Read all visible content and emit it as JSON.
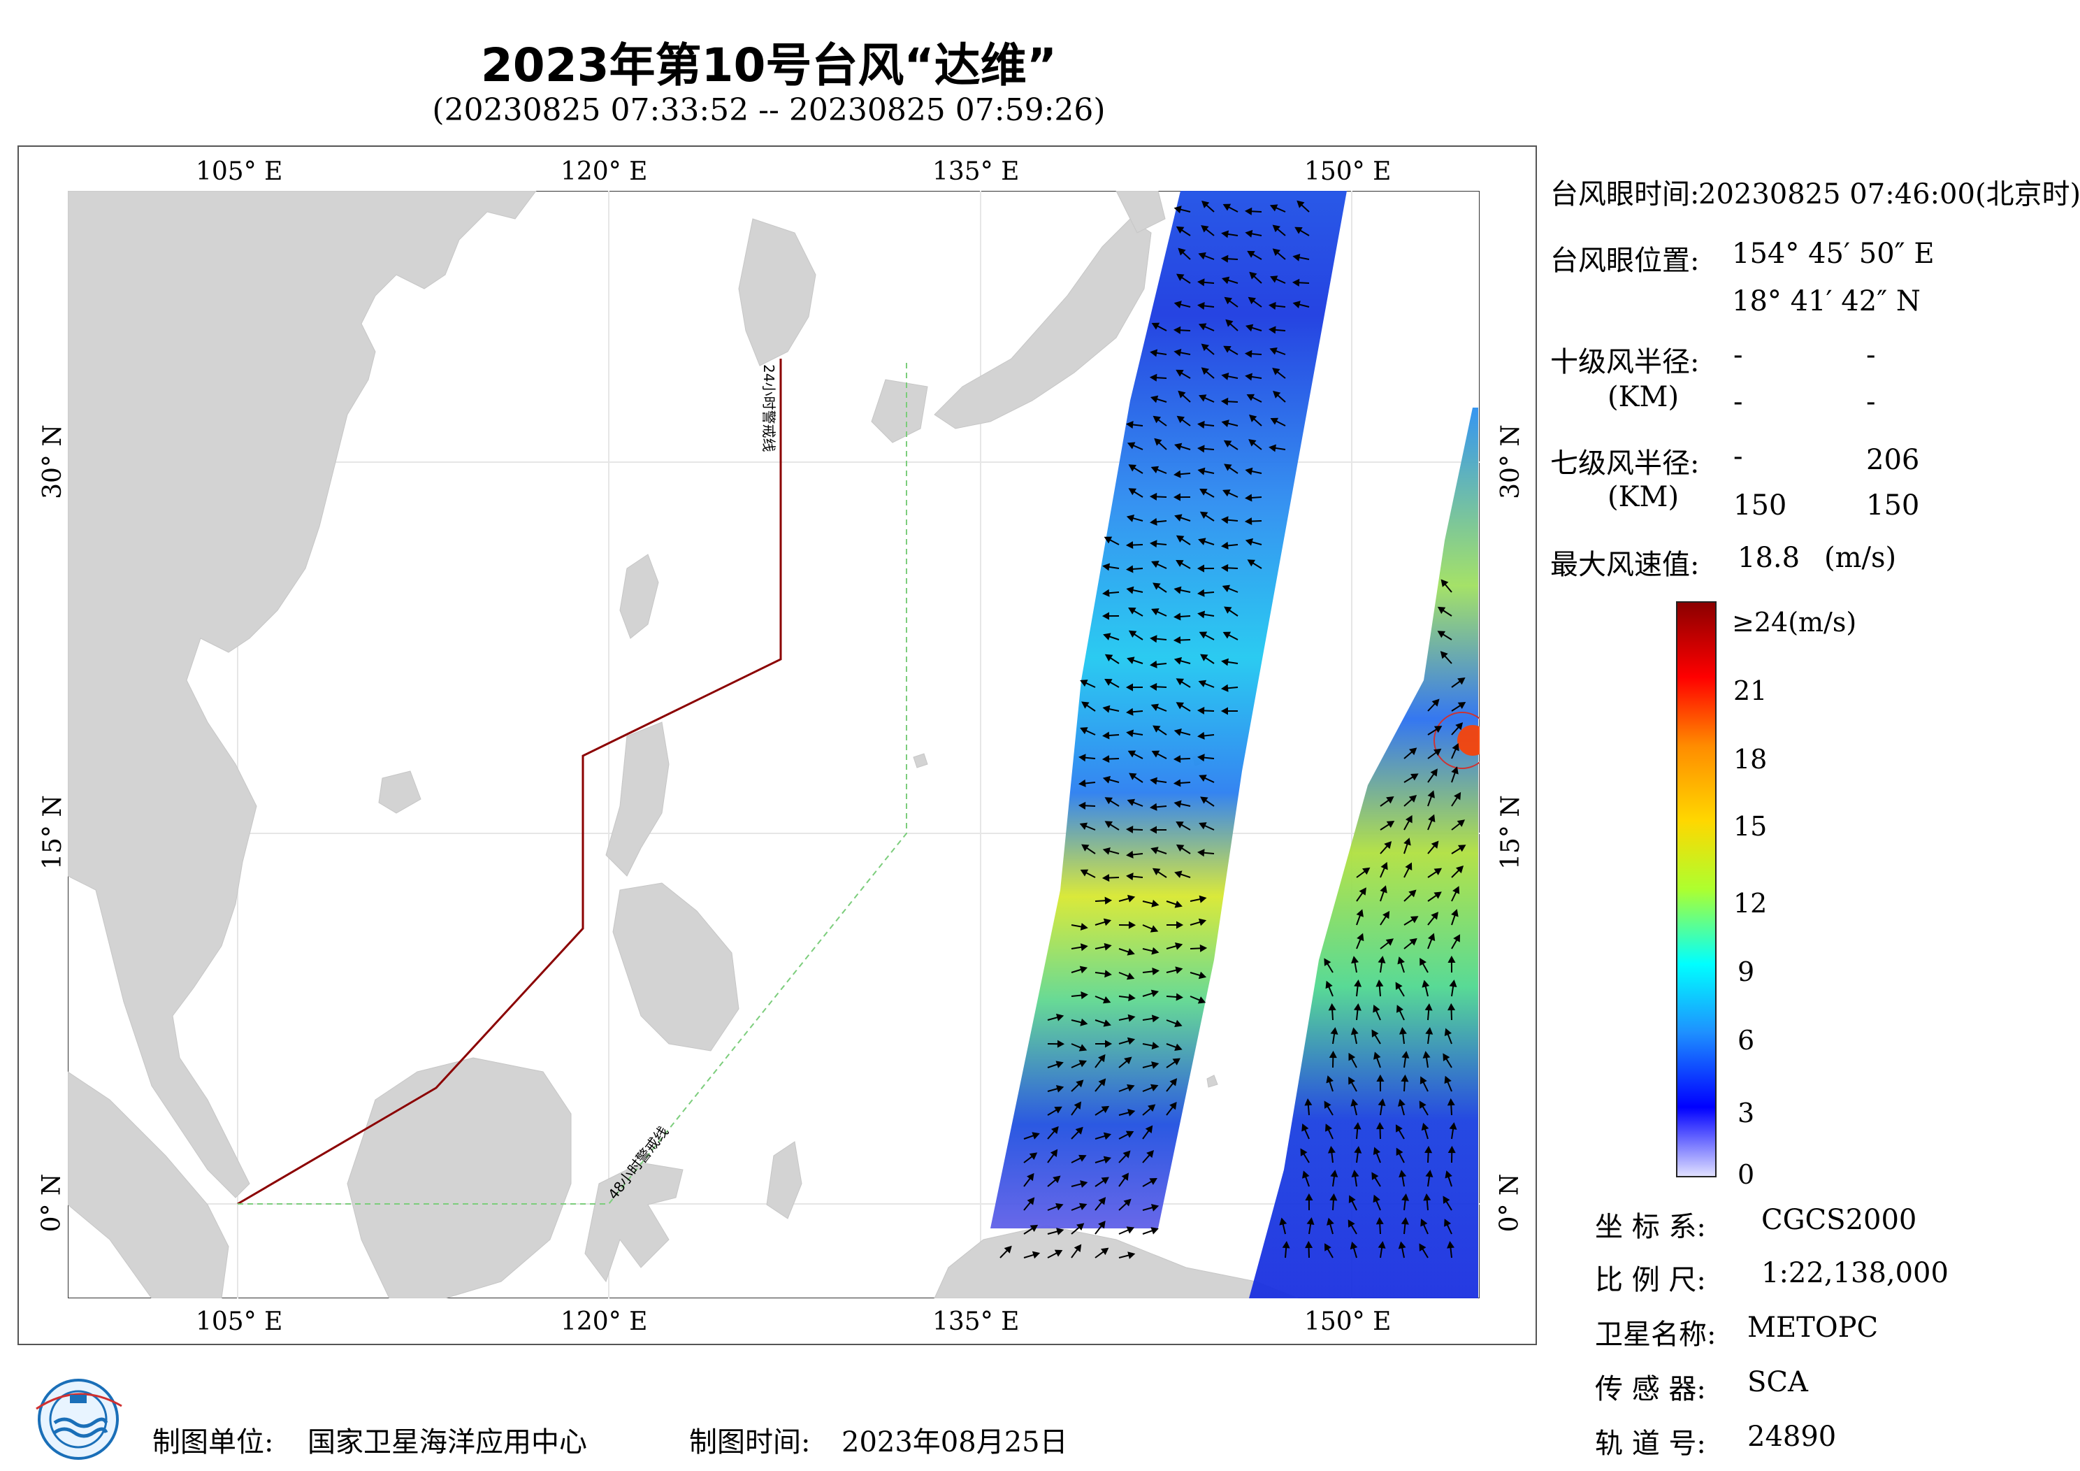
{
  "header": {
    "title": "2023年第10号台风“达维”",
    "subtitle": "(20230825 07:33:52 -- 20230825 07:59:26)"
  },
  "map": {
    "lon_ticks_top": [
      "105° E",
      "120° E",
      "135° E",
      "150° E"
    ],
    "lon_ticks_bottom": [
      "105° E",
      "120° E",
      "135° E",
      "150° E"
    ],
    "lat_ticks_left": [
      "30° N",
      "15° N",
      "0° N"
    ],
    "lat_ticks_right": [
      "30° N",
      "15° N",
      "0° N"
    ],
    "warning_line_24": "24小时警戒线",
    "warning_line_48": "48小时警戒线",
    "lon_range": [
      98,
      155
    ],
    "lat_range": [
      -4,
      41
    ],
    "colors": {
      "land": "#d3d3d3",
      "line24": "#8b0000",
      "line48": "#7ccd7c"
    }
  },
  "info": {
    "eye_time_label": "台风眼时间:",
    "eye_time_value": "20230825 07:46:00(北京时)",
    "eye_pos_label": "台风眼位置:",
    "eye_pos_lon": "154° 45′ 50″ E",
    "eye_pos_lat": "18° 41′ 42″ N",
    "r10_label": "十级风半径:",
    "r10_unit": "(KM)",
    "r10_values": [
      "-",
      "-",
      "-",
      "-"
    ],
    "r7_label": "七级风半径:",
    "r7_unit": "(KM)",
    "r7_values": [
      "-",
      "206",
      "150",
      "150"
    ],
    "max_wind_label": "最大风速值:",
    "max_wind_value": "18.8",
    "max_wind_unit": "(m/s)"
  },
  "colorbar": {
    "labels": [
      "≥24(m/s)",
      "21",
      "18",
      "15",
      "12",
      "9",
      "6",
      "3",
      "0"
    ],
    "colors": [
      "#8b0000",
      "#ff0000",
      "#ff8c00",
      "#ffd700",
      "#adff2f",
      "#00ffff",
      "#1e90ff",
      "#0000ff",
      "#e0e0ff"
    ]
  },
  "meta": {
    "crs_label": "坐 标 系:",
    "crs_value": "CGCS2000",
    "scale_label": "比 例 尺:",
    "scale_value": "1:22,138,000",
    "satellite_label": "卫星名称:",
    "satellite_value": "METOPC",
    "sensor_label": "传 感 器:",
    "sensor_value": "SCA",
    "orbit_label": "轨 道 号:",
    "orbit_value": "24890"
  },
  "footer": {
    "producer_label": "制图单位:",
    "producer_value": "国家卫星海洋应用中心",
    "date_label": "制图时间:",
    "date_value": "2023年08月25日"
  }
}
